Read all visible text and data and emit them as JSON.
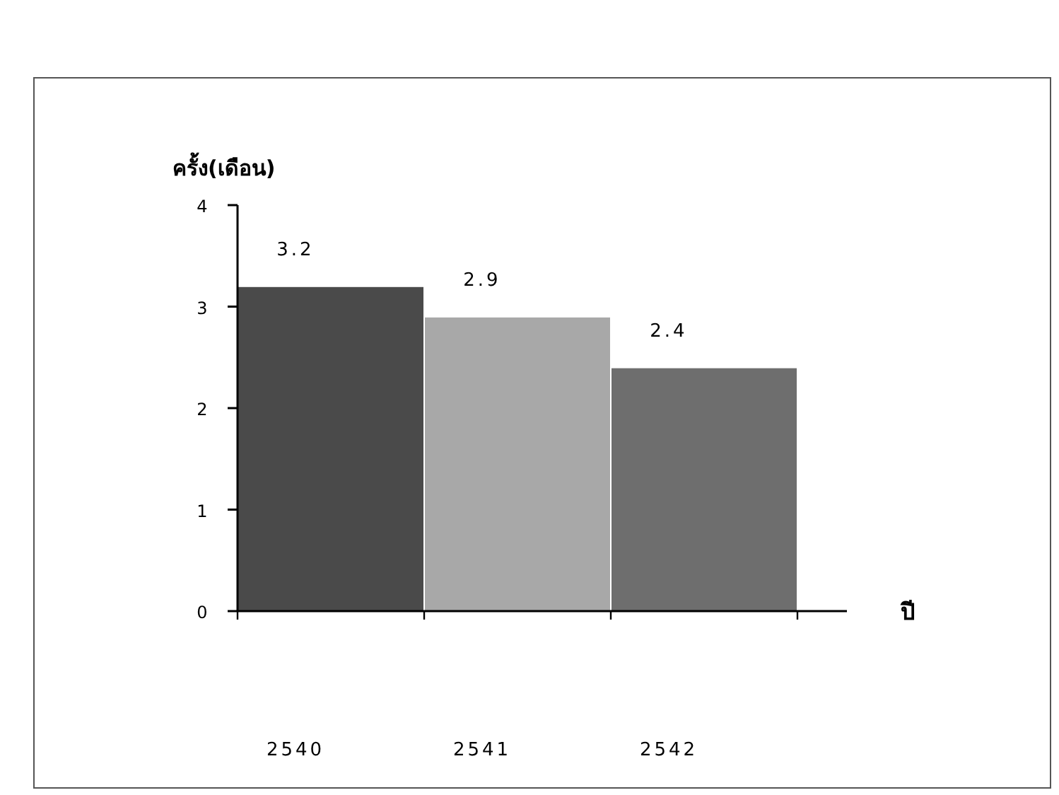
{
  "chart_data": {
    "type": "bar",
    "ylabel": "ครั้ง(เดือน)",
    "xlabel": "ปี",
    "categories": [
      "2540",
      "2541",
      "2542"
    ],
    "values": [
      3.2,
      2.9,
      2.4
    ],
    "colors": [
      "#4a4a4a",
      "#a8a8a8",
      "#6e6e6e"
    ],
    "ylim": [
      0,
      4
    ],
    "yticks": [
      0,
      1,
      2,
      3,
      4
    ],
    "data_labels": true
  }
}
